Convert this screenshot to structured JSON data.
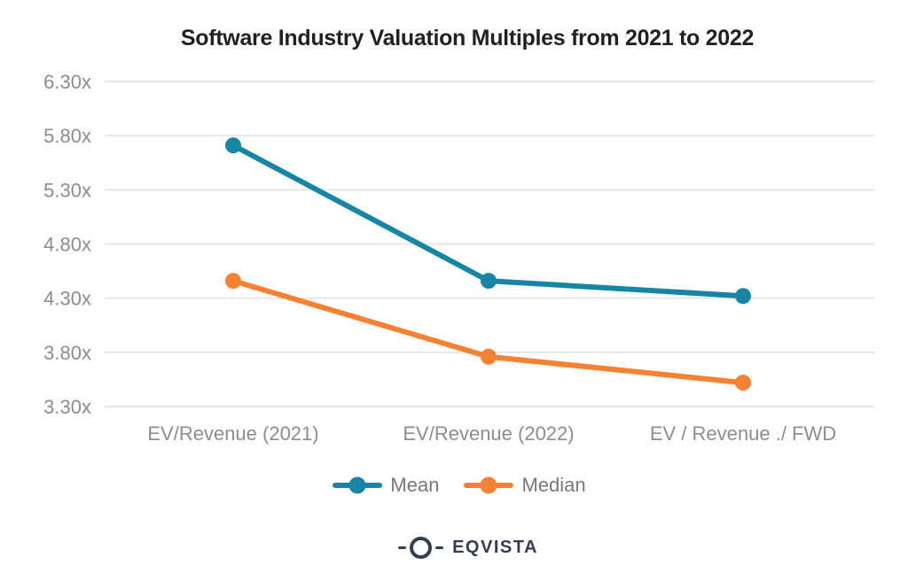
{
  "title": "Software Industry Valuation Multiples from 2021 to 2022",
  "chart_data": {
    "type": "line",
    "title": "Software Industry Valuation Multiples from 2021 to 2022",
    "categories": [
      "EV/Revenue (2021)",
      "EV/Revenue (2022)",
      "EV / Revenue ./ FWD"
    ],
    "series": [
      {
        "name": "Mean",
        "color": "#1785a4",
        "values": [
          5.71,
          4.46,
          4.32
        ]
      },
      {
        "name": "Median",
        "color": "#f58233",
        "values": [
          4.46,
          3.76,
          3.52
        ]
      }
    ],
    "unit_suffix": "x",
    "y_ticks": [
      {
        "label": "6.30x",
        "value": 6.3
      },
      {
        "label": "5.80x",
        "value": 5.8
      },
      {
        "label": "5.30x",
        "value": 5.3
      },
      {
        "label": "4.80x",
        "value": 4.8
      },
      {
        "label": "4.30x",
        "value": 4.3
      },
      {
        "label": "3.80x",
        "value": 3.8
      },
      {
        "label": "3.30x",
        "value": 3.3
      }
    ],
    "ylim": [
      3.3,
      6.3
    ],
    "xlabel": "",
    "ylabel": "",
    "grid": "horizontal",
    "legend_position": "bottom"
  },
  "branding": {
    "name": "EQVISTA"
  },
  "colors": {
    "background": "#ffffff",
    "title_text": "#1f2124",
    "axis_text": "#8b8d90",
    "gridline": "#e7e7e7",
    "legend_text": "#77787b",
    "brand": "#333e4f",
    "mean_series": "#1785a4",
    "median_series": "#f58233"
  }
}
